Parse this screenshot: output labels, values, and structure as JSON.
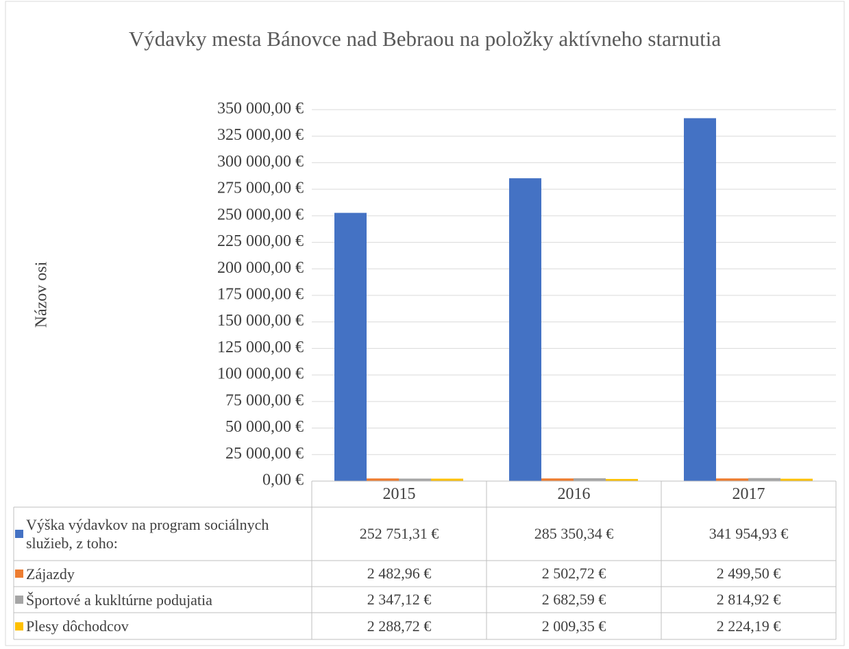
{
  "chart_data": {
    "type": "bar",
    "title": "Výdavky mesta Bánovce nad Bebraou na položky aktívneho starnutia",
    "y_label": "Názov osi",
    "categories": [
      "2015",
      "2016",
      "2017"
    ],
    "series": [
      {
        "name": "Výška výdavkov na program sociálnych služieb, z toho:",
        "color": "#4472c4",
        "values": [
          252751.31,
          285350.34,
          341954.93
        ],
        "value_labels": [
          "252 751,31 €",
          "285 350,34 €",
          "341 954,93 €"
        ]
      },
      {
        "name": "Zájazdy",
        "color": "#ed7d31",
        "values": [
          2482.96,
          2502.72,
          2499.5
        ],
        "value_labels": [
          "2 482,96 €",
          "2 502,72 €",
          "2 499,50 €"
        ]
      },
      {
        "name": "Športové a kukltúrne podujatia",
        "color": "#a5a5a5",
        "values": [
          2347.12,
          2682.59,
          2814.92
        ],
        "value_labels": [
          "2 347,12 €",
          "2 682,59 €",
          "2 814,92 €"
        ]
      },
      {
        "name": "Plesy dôchodcov",
        "color": "#ffc000",
        "values": [
          2288.72,
          2009.35,
          2224.19
        ],
        "value_labels": [
          "2 288,72 €",
          "2 009,35 €",
          "2 224,19 €"
        ]
      }
    ],
    "ylim": [
      0,
      350000
    ],
    "yticks": [
      {
        "value": 0,
        "label": "0,00 €"
      },
      {
        "value": 25000,
        "label": "25 000,00 €"
      },
      {
        "value": 50000,
        "label": "50 000,00 €"
      },
      {
        "value": 75000,
        "label": "75 000,00 €"
      },
      {
        "value": 100000,
        "label": "100 000,00 €"
      },
      {
        "value": 125000,
        "label": "125 000,00 €"
      },
      {
        "value": 150000,
        "label": "150 000,00 €"
      },
      {
        "value": 175000,
        "label": "175 000,00 €"
      },
      {
        "value": 200000,
        "label": "200 000,00 €"
      },
      {
        "value": 225000,
        "label": "225 000,00 €"
      },
      {
        "value": 250000,
        "label": "250 000,00 €"
      },
      {
        "value": 275000,
        "label": "275 000,00 €"
      },
      {
        "value": 300000,
        "label": "300 000,00 €"
      },
      {
        "value": 325000,
        "label": "325 000,00 €"
      },
      {
        "value": 350000,
        "label": "350 000,00 €"
      }
    ],
    "grid": true
  }
}
